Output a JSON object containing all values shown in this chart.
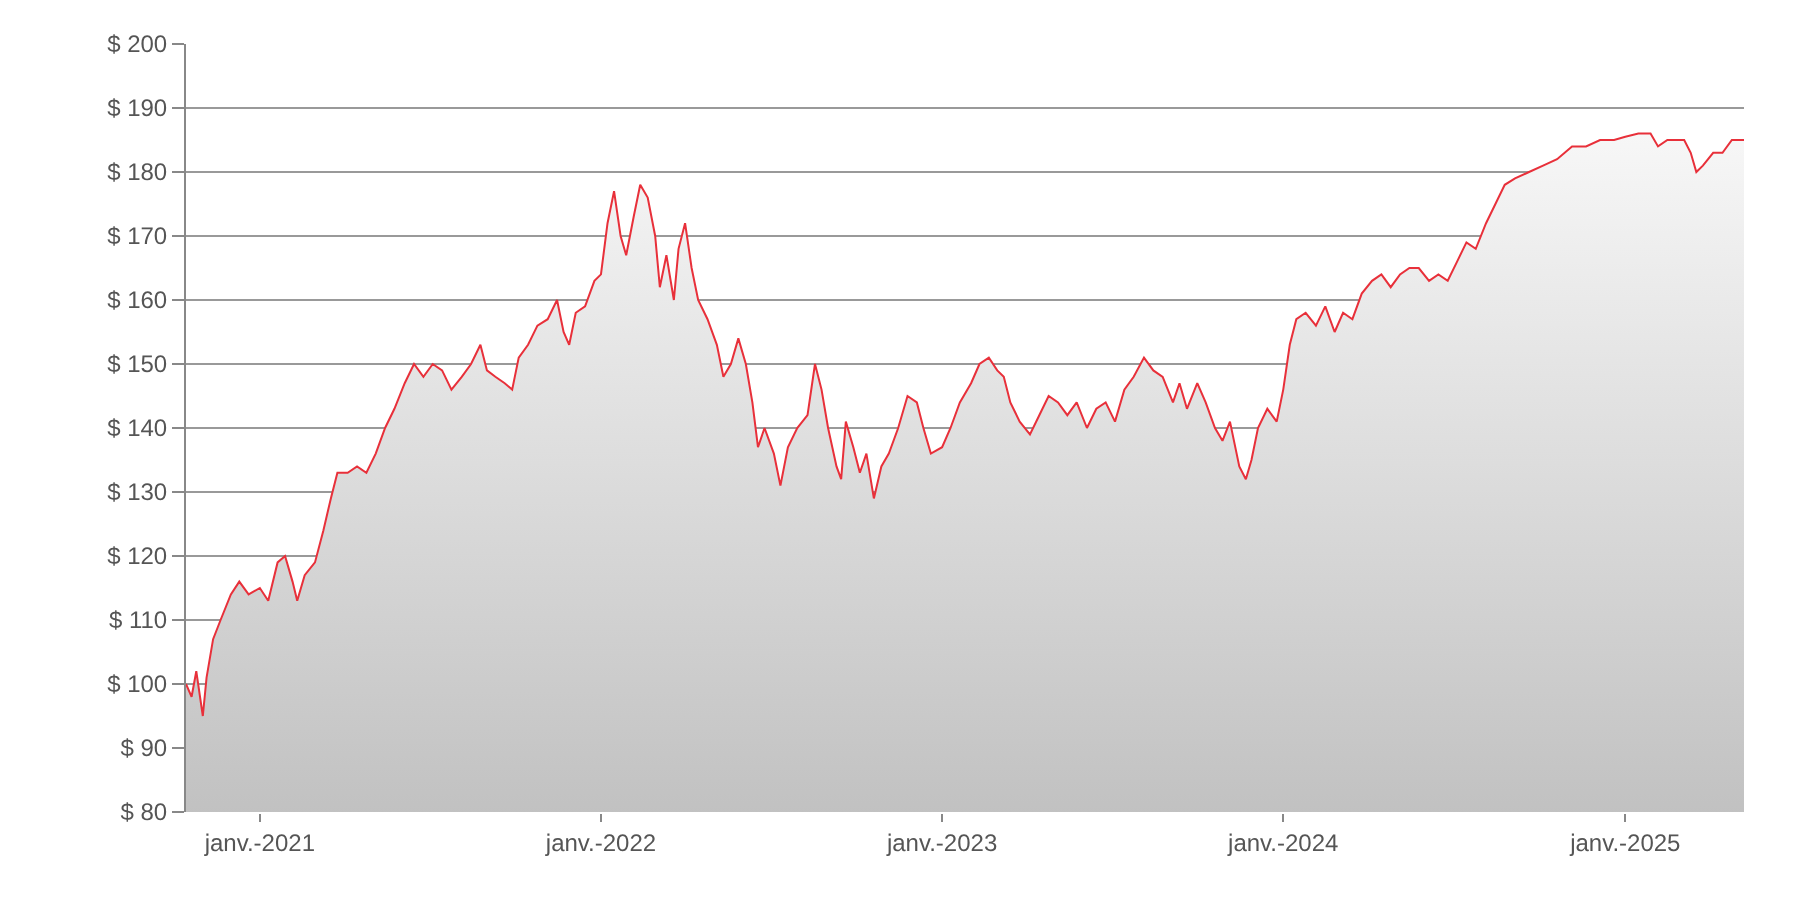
{
  "chart_data": {
    "type": "area",
    "grid": "y",
    "legend": false,
    "ylim": [
      80,
      200
    ],
    "yticks": [
      {
        "value": 80,
        "label": "$ 80"
      },
      {
        "value": 90,
        "label": "$ 90"
      },
      {
        "value": 100,
        "label": "$ 100"
      },
      {
        "value": 110,
        "label": "$ 110"
      },
      {
        "value": 120,
        "label": "$ 120"
      },
      {
        "value": 130,
        "label": "$ 130"
      },
      {
        "value": 140,
        "label": "$ 140"
      },
      {
        "value": 150,
        "label": "$ 150"
      },
      {
        "value": 160,
        "label": "$ 160"
      },
      {
        "value": 170,
        "label": "$ 170"
      },
      {
        "value": 180,
        "label": "$ 180"
      },
      {
        "value": 190,
        "label": "$ 190"
      },
      {
        "value": 200,
        "label": "$ 200"
      }
    ],
    "xlim": [
      "2020-10-14",
      "2025-05-08"
    ],
    "xticks": [
      {
        "value": "2021-01-01",
        "label": "janv.-2021"
      },
      {
        "value": "2022-01-01",
        "label": "janv.-2022"
      },
      {
        "value": "2023-01-01",
        "label": "janv.-2023"
      },
      {
        "value": "2024-01-01",
        "label": "janv.-2024"
      },
      {
        "value": "2025-01-01",
        "label": "janv.-2025"
      }
    ],
    "x": [
      "2020-10-14",
      "2020-10-20",
      "2020-10-25",
      "2020-11-01",
      "2020-11-05",
      "2020-11-12",
      "2020-11-20",
      "2020-12-01",
      "2020-12-10",
      "2020-12-20",
      "2021-01-01",
      "2021-01-10",
      "2021-01-20",
      "2021-01-28",
      "2021-02-05",
      "2021-02-10",
      "2021-02-18",
      "2021-03-01",
      "2021-03-10",
      "2021-03-18",
      "2021-03-25",
      "2021-04-05",
      "2021-04-15",
      "2021-04-25",
      "2021-05-05",
      "2021-05-15",
      "2021-05-25",
      "2021-06-05",
      "2021-06-15",
      "2021-06-25",
      "2021-07-05",
      "2021-07-15",
      "2021-07-25",
      "2021-08-05",
      "2021-08-15",
      "2021-08-25",
      "2021-09-01",
      "2021-09-10",
      "2021-09-20",
      "2021-09-28",
      "2021-10-05",
      "2021-10-15",
      "2021-10-25",
      "2021-11-05",
      "2021-11-15",
      "2021-11-22",
      "2021-11-28",
      "2021-12-05",
      "2021-12-15",
      "2021-12-25",
      "2022-01-01",
      "2022-01-08",
      "2022-01-15",
      "2022-01-22",
      "2022-01-28",
      "2022-02-05",
      "2022-02-12",
      "2022-02-20",
      "2022-02-28",
      "2022-03-05",
      "2022-03-12",
      "2022-03-20",
      "2022-03-25",
      "2022-04-01",
      "2022-04-08",
      "2022-04-15",
      "2022-04-25",
      "2022-05-05",
      "2022-05-12",
      "2022-05-20",
      "2022-05-28",
      "2022-06-05",
      "2022-06-12",
      "2022-06-18",
      "2022-06-25",
      "2022-07-05",
      "2022-07-12",
      "2022-07-20",
      "2022-07-30",
      "2022-08-10",
      "2022-08-18",
      "2022-08-25",
      "2022-09-01",
      "2022-09-10",
      "2022-09-15",
      "2022-09-20",
      "2022-09-28",
      "2022-10-05",
      "2022-10-12",
      "2022-10-20",
      "2022-10-28",
      "2022-11-05",
      "2022-11-15",
      "2022-11-25",
      "2022-12-05",
      "2022-12-12",
      "2022-12-20",
      "2023-01-01",
      "2023-01-10",
      "2023-01-20",
      "2023-02-01",
      "2023-02-10",
      "2023-02-20",
      "2023-03-01",
      "2023-03-08",
      "2023-03-15",
      "2023-03-25",
      "2023-04-05",
      "2023-04-15",
      "2023-04-25",
      "2023-05-05",
      "2023-05-15",
      "2023-05-25",
      "2023-06-05",
      "2023-06-15",
      "2023-06-25",
      "2023-07-05",
      "2023-07-15",
      "2023-07-25",
      "2023-08-05",
      "2023-08-15",
      "2023-08-25",
      "2023-09-05",
      "2023-09-12",
      "2023-09-20",
      "2023-10-01",
      "2023-10-10",
      "2023-10-20",
      "2023-10-28",
      "2023-11-05",
      "2023-11-15",
      "2023-11-22",
      "2023-11-28",
      "2023-12-05",
      "2023-12-15",
      "2023-12-25",
      "2024-01-01",
      "2024-01-08",
      "2024-01-15",
      "2024-01-25",
      "2024-02-05",
      "2024-02-15",
      "2024-02-25",
      "2024-03-05",
      "2024-03-15",
      "2024-03-25",
      "2024-04-05",
      "2024-04-15",
      "2024-04-25",
      "2024-05-05",
      "2024-05-15",
      "2024-05-25",
      "2024-06-05",
      "2024-06-15",
      "2024-06-25",
      "2024-07-05",
      "2024-07-15",
      "2024-07-25",
      "2024-08-05",
      "2024-08-15",
      "2024-08-25",
      "2024-09-05",
      "2024-09-20",
      "2024-10-05",
      "2024-10-20",
      "2024-11-05",
      "2024-11-20",
      "2024-12-05",
      "2024-12-20",
      "2025-01-01",
      "2025-01-15",
      "2025-01-28",
      "2025-02-05",
      "2025-02-15",
      "2025-02-25",
      "2025-03-05",
      "2025-03-12",
      "2025-03-18",
      "2025-03-25",
      "2025-04-05",
      "2025-04-15",
      "2025-04-25",
      "2025-05-08"
    ],
    "series": [
      {
        "color": "#e8303a",
        "values": [
          100,
          98,
          102,
          95,
          101,
          107,
          110,
          114,
          116,
          114,
          115,
          113,
          119,
          120,
          116,
          113,
          117,
          119,
          124,
          129,
          133,
          133,
          134,
          133,
          136,
          140,
          143,
          147,
          150,
          148,
          150,
          149,
          146,
          148,
          150,
          153,
          149,
          148,
          147,
          146,
          151,
          153,
          156,
          157,
          160,
          155,
          153,
          158,
          159,
          163,
          164,
          172,
          177,
          170,
          167,
          173,
          178,
          176,
          170,
          162,
          167,
          160,
          168,
          172,
          165,
          160,
          157,
          153,
          148,
          150,
          154,
          150,
          144,
          137,
          140,
          136,
          131,
          137,
          140,
          142,
          150,
          146,
          140,
          134,
          132,
          141,
          137,
          133,
          136,
          129,
          134,
          136,
          140,
          145,
          144,
          140,
          136,
          137,
          140,
          144,
          147,
          150,
          151,
          149,
          148,
          144,
          141,
          139,
          142,
          145,
          144,
          142,
          144,
          140,
          143,
          144,
          141,
          146,
          148,
          151,
          149,
          148,
          144,
          147,
          143,
          147,
          144,
          140,
          138,
          141,
          134,
          132,
          135,
          140,
          143,
          141,
          146,
          153,
          157,
          158,
          156,
          159,
          155,
          158,
          157,
          161,
          163,
          164,
          162,
          164,
          165,
          165,
          163,
          164,
          163,
          166,
          169,
          168,
          172,
          175,
          178,
          179,
          180,
          181,
          182,
          184,
          184,
          185,
          185,
          185.5,
          186,
          186,
          184,
          185,
          185,
          185,
          183,
          180,
          181,
          183,
          183,
          185,
          185
        ]
      }
    ]
  }
}
